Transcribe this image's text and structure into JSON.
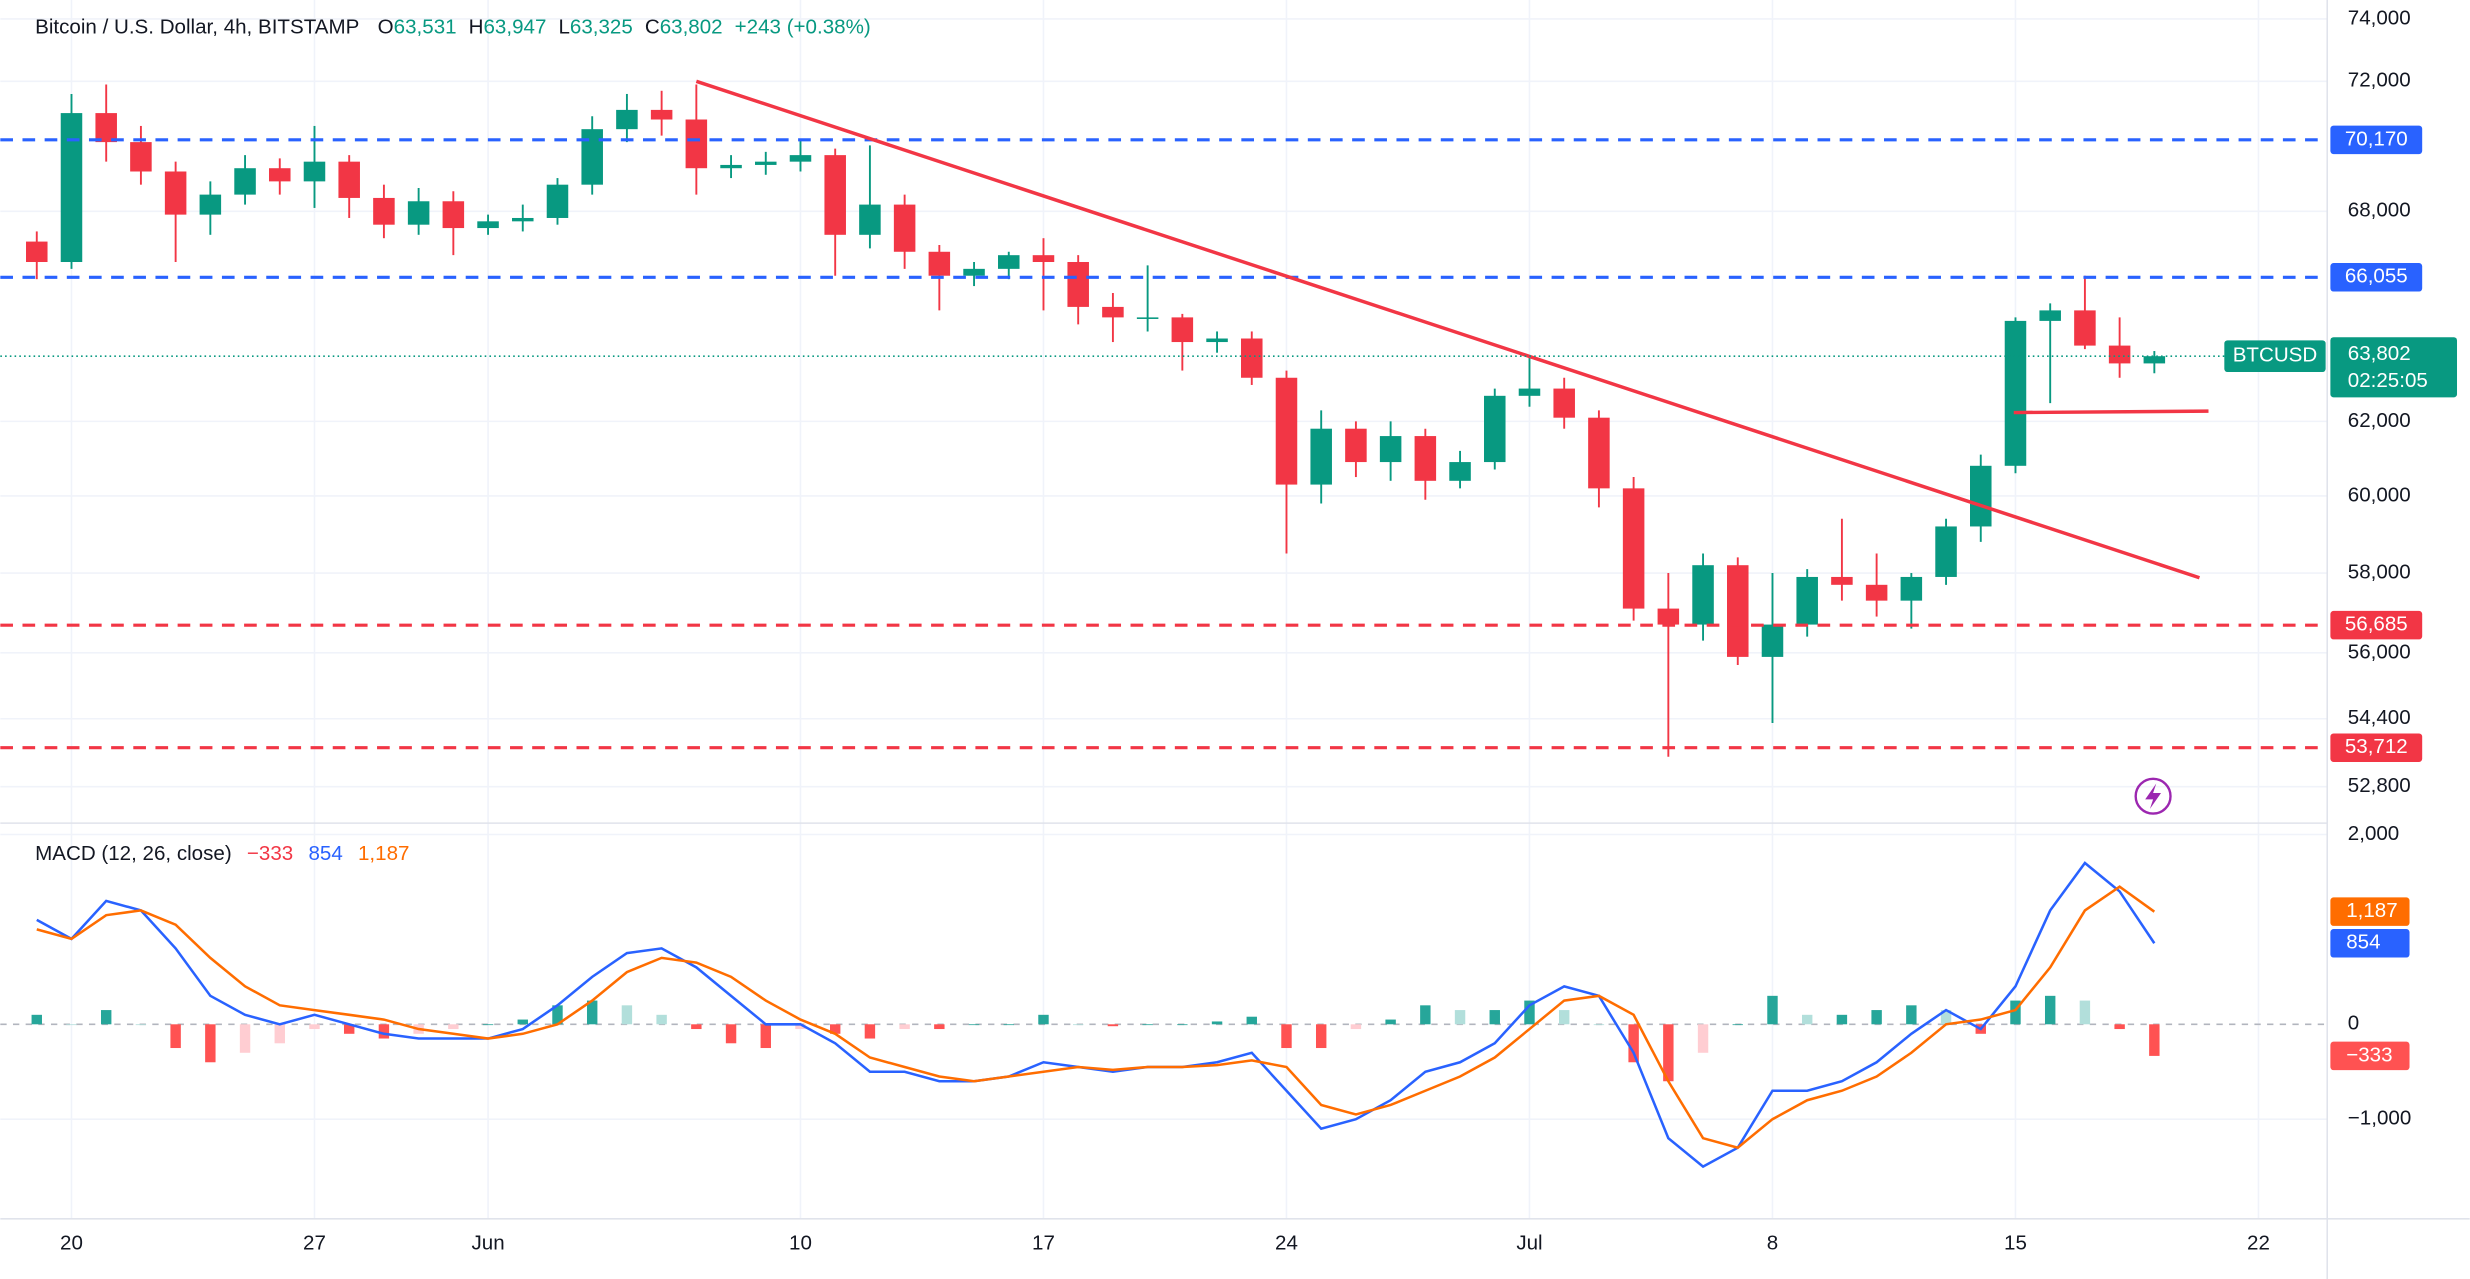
{
  "header": {
    "symbol": "Bitcoin / U.S. Dollar, 4h, BITSTAMP",
    "o_label": "O",
    "open": "63,531",
    "h_label": "H",
    "high": "63,947",
    "l_label": "L",
    "low": "63,325",
    "c_label": "C",
    "close": "63,802",
    "change": "+243 (+0.38%)"
  },
  "chart_data": [
    {
      "type": "candlestick",
      "log": true,
      "grid": true,
      "up_color": "#089981",
      "down_color": "#f23645",
      "x": [
        -1,
        0,
        1,
        2,
        3,
        4,
        5,
        6,
        7,
        8,
        9,
        10,
        11,
        12,
        13,
        14,
        15,
        16,
        17,
        18,
        19,
        20,
        21,
        22,
        23,
        24,
        25,
        26,
        27,
        28,
        29,
        30,
        31,
        32,
        33,
        34,
        35,
        36,
        37,
        38,
        39,
        40,
        41,
        42,
        43,
        44,
        45,
        46,
        47,
        48,
        49,
        50,
        51,
        52,
        53,
        54,
        55,
        56,
        57,
        58,
        59,
        60
      ],
      "open": [
        67100,
        66500,
        71000,
        70100,
        69200,
        67900,
        68500,
        69300,
        68900,
        69500,
        68400,
        67600,
        68300,
        67500,
        67700,
        67800,
        68800,
        70500,
        71100,
        70800,
        69300,
        69400,
        69500,
        69700,
        67300,
        68200,
        66800,
        66100,
        66300,
        66700,
        66500,
        65200,
        64900,
        64900,
        64200,
        64300,
        63200,
        60300,
        61800,
        60900,
        61600,
        60400,
        60900,
        62700,
        62900,
        62100,
        60200,
        57100,
        56700,
        58200,
        55900,
        56700,
        57900,
        57700,
        57300,
        57900,
        59200,
        60800,
        64800,
        65100,
        64100,
        63600
      ],
      "high": [
        67400,
        71600,
        71900,
        70600,
        69500,
        68900,
        69700,
        69600,
        70600,
        69700,
        68800,
        68700,
        68600,
        67900,
        68200,
        69000,
        70900,
        71600,
        71700,
        71900,
        69700,
        69800,
        70200,
        69900,
        70000,
        68500,
        67000,
        66500,
        66800,
        67200,
        66700,
        65600,
        66400,
        65000,
        64500,
        64500,
        63400,
        62300,
        62000,
        62000,
        61800,
        61200,
        62900,
        63800,
        63200,
        62300,
        60500,
        58000,
        58500,
        58400,
        58000,
        58100,
        59400,
        58500,
        58000,
        59400,
        61100,
        64900,
        65300,
        66100,
        64900,
        63947
      ],
      "low": [
        66000,
        66300,
        69500,
        68800,
        66500,
        67300,
        68200,
        68500,
        68100,
        67800,
        67200,
        67300,
        66700,
        67300,
        67400,
        67600,
        68500,
        70100,
        70300,
        68500,
        69000,
        69100,
        69200,
        66100,
        66900,
        66300,
        65100,
        65800,
        66000,
        65100,
        64700,
        64200,
        64500,
        63400,
        63900,
        63000,
        58500,
        59800,
        60500,
        60400,
        59900,
        60200,
        60700,
        62400,
        61800,
        59700,
        56800,
        53500,
        56300,
        55700,
        54300,
        56400,
        57300,
        56900,
        56600,
        57700,
        58800,
        60600,
        62500,
        64000,
        63200,
        63325
      ],
      "close": [
        66500,
        71000,
        70100,
        69200,
        67900,
        68500,
        69300,
        68900,
        69500,
        68400,
        67600,
        68300,
        67500,
        67700,
        67800,
        68800,
        70500,
        71100,
        70800,
        69300,
        69400,
        69500,
        69700,
        67300,
        68200,
        66800,
        66100,
        66300,
        66700,
        66500,
        65200,
        64900,
        64900,
        64200,
        64300,
        63200,
        60300,
        61800,
        60900,
        61600,
        60400,
        60900,
        62700,
        62900,
        62100,
        60200,
        57100,
        56700,
        58200,
        55900,
        56700,
        57900,
        57700,
        57300,
        57900,
        59200,
        60800,
        64800,
        65100,
        64100,
        63600,
        63802
      ],
      "xlim": [
        -2.05,
        64.98
      ],
      "ylim": [
        51960,
        74620
      ],
      "yticks": [
        {
          "value": 74000,
          "label": "74,000"
        },
        {
          "value": 72000,
          "label": "72,000"
        },
        {
          "value": 68000,
          "label": "68,000"
        },
        {
          "value": 62000,
          "label": "62,000"
        },
        {
          "value": 60000,
          "label": "60,000"
        },
        {
          "value": 58000,
          "label": "58,000"
        },
        {
          "value": 56000,
          "label": "56,000"
        },
        {
          "value": 54400,
          "label": "54,400"
        },
        {
          "value": 52800,
          "label": "52,800"
        }
      ],
      "xticks": [
        {
          "value": 0,
          "label": "20"
        },
        {
          "value": 7,
          "label": "27"
        },
        {
          "value": 12,
          "label": "Jun"
        },
        {
          "value": 21,
          "label": "10"
        },
        {
          "value": 28,
          "label": "17"
        },
        {
          "value": 35,
          "label": "24"
        },
        {
          "value": 42,
          "label": "Jul"
        },
        {
          "value": 49,
          "label": "8"
        },
        {
          "value": 56,
          "label": "15"
        },
        {
          "value": 63,
          "label": "22"
        }
      ],
      "levels": [
        {
          "value": 70170,
          "label": "70,170",
          "color": "#2962ff"
        },
        {
          "value": 66055,
          "label": "66,055",
          "color": "#2962ff"
        },
        {
          "value": 56685,
          "label": "56,685",
          "color": "#f23645"
        },
        {
          "value": 53712,
          "label": "53,712",
          "color": "#f23645"
        }
      ],
      "trendlines": [
        {
          "x": [
            18.0,
            61.3
          ],
          "y": [
            72000,
            57880
          ],
          "color": "#f23645"
        },
        {
          "x": [
            55.95,
            61.56
          ],
          "y": [
            62240,
            62280
          ],
          "color": "#f23645"
        }
      ],
      "last_price": {
        "name": "BTCUSD",
        "value": 63802,
        "label": "63,802",
        "countdown": "02:25:05",
        "color": "#089981"
      }
    },
    {
      "type": "macd",
      "title": "MACD (12, 26, close)",
      "series": [
        {
          "name": "MACD",
          "color": "#2962ff",
          "last_label": "854",
          "values": [
            1100,
            900,
            1300,
            1200,
            800,
            300,
            100,
            0,
            100,
            0,
            -100,
            -150,
            -150,
            -150,
            -50,
            200,
            500,
            750,
            800,
            600,
            300,
            0,
            0,
            -200,
            -500,
            -500,
            -600,
            -600,
            -550,
            -400,
            -450,
            -500,
            -450,
            -450,
            -400,
            -300,
            -700,
            -1100,
            -1000,
            -800,
            -500,
            -400,
            -200,
            200,
            400,
            300,
            -300,
            -1200,
            -1500,
            -1300,
            -700,
            -700,
            -600,
            -400,
            -100,
            150,
            -50,
            400,
            1200,
            1700,
            1400,
            854
          ]
        },
        {
          "name": "Signal",
          "color": "#ff6d00",
          "last_label": "1,187",
          "values": [
            1000,
            900,
            1150,
            1200,
            1050,
            700,
            400,
            200,
            150,
            100,
            50,
            -50,
            -100,
            -150,
            -100,
            0,
            250,
            550,
            700,
            650,
            500,
            250,
            50,
            -100,
            -350,
            -450,
            -550,
            -600,
            -550,
            -500,
            -450,
            -480,
            -450,
            -450,
            -430,
            -380,
            -450,
            -850,
            -950,
            -850,
            -700,
            -550,
            -350,
            -50,
            250,
            300,
            100,
            -600,
            -1200,
            -1300,
            -1000,
            -800,
            -700,
            -550,
            -300,
            0,
            50,
            150,
            600,
            1200,
            1450,
            1187
          ]
        }
      ],
      "histogram": {
        "name": "Histogram",
        "last_label": "−333",
        "colors": [
          "#26a69a",
          "#b2dfdb",
          "#ff5252",
          "#ffcdd2"
        ],
        "values": [
          100,
          0,
          150,
          0,
          -250,
          -400,
          -300,
          -200,
          -50,
          -100,
          -150,
          -100,
          -50,
          0,
          50,
          200,
          250,
          200,
          100,
          -50,
          -200,
          -250,
          -50,
          -100,
          -150,
          -50,
          -50,
          0,
          0,
          100,
          0,
          -20,
          0,
          0,
          30,
          80,
          -250,
          -250,
          -50,
          50,
          200,
          150,
          150,
          250,
          150,
          0,
          -400,
          -600,
          -300,
          0,
          300,
          100,
          100,
          150,
          200,
          150,
          -100,
          250,
          300,
          250,
          -50,
          -333
        ]
      },
      "ylim": [
        -2050,
        2120
      ],
      "yticks": [
        {
          "value": 2000,
          "label": "2,000"
        },
        0,
        {
          "value": -1000,
          "label": "−1,000"
        }
      ]
    }
  ]
}
